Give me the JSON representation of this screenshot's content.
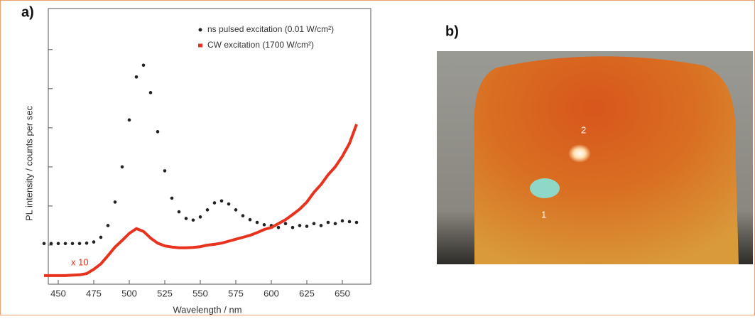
{
  "chart_data": {
    "type": "line",
    "panel_label": "a)",
    "annotation": "x 10",
    "xlabel": "Wavelength / nm",
    "ylabel": "PL intensity / counts per sec",
    "x": [
      440,
      445,
      450,
      455,
      460,
      465,
      470,
      475,
      480,
      485,
      490,
      495,
      500,
      505,
      510,
      515,
      520,
      525,
      530,
      535,
      540,
      545,
      550,
      555,
      560,
      565,
      570,
      575,
      580,
      585,
      590,
      595,
      600,
      605,
      610,
      615,
      620,
      625,
      630,
      635,
      640,
      645,
      650,
      655,
      660
    ],
    "series": [
      {
        "name": "ns pulsed excitation (0.01 W/cm²)",
        "color": "#222222",
        "marker": "dot",
        "values": [
          1.04,
          1.04,
          1.04,
          1.04,
          1.04,
          1.04,
          1.05,
          1.08,
          1.2,
          1.5,
          2.1,
          3.0,
          4.2,
          5.3,
          5.6,
          4.9,
          3.9,
          2.9,
          2.2,
          1.85,
          1.68,
          1.64,
          1.72,
          1.9,
          2.08,
          2.13,
          2.05,
          1.9,
          1.75,
          1.65,
          1.58,
          1.52,
          1.5,
          1.45,
          1.55,
          1.45,
          1.5,
          1.48,
          1.55,
          1.5,
          1.58,
          1.55,
          1.62,
          1.6,
          1.58
        ]
      },
      {
        "name": "CW excitation (1700 W/cm²)",
        "color": "#e8321e",
        "marker": "line",
        "values": [
          0.22,
          0.22,
          0.22,
          0.22,
          0.23,
          0.24,
          0.27,
          0.38,
          0.52,
          0.73,
          0.95,
          1.12,
          1.3,
          1.42,
          1.35,
          1.18,
          1.05,
          0.98,
          0.95,
          0.93,
          0.93,
          0.94,
          0.96,
          1.0,
          1.02,
          1.05,
          1.1,
          1.15,
          1.2,
          1.25,
          1.32,
          1.4,
          1.45,
          1.55,
          1.65,
          1.78,
          1.92,
          2.1,
          2.35,
          2.55,
          2.8,
          3.0,
          3.27,
          3.6,
          4.09
        ]
      }
    ],
    "xlim": [
      443,
      670
    ],
    "xticks": [
      450,
      475,
      500,
      525,
      550,
      575,
      600,
      625,
      650
    ],
    "ylim": [
      0,
      7.05
    ],
    "yticks": [
      1,
      2,
      3,
      4,
      5,
      6
    ],
    "legend": "upper right"
  },
  "panel_b": {
    "label": "b)",
    "spots": [
      "1",
      "2"
    ]
  }
}
